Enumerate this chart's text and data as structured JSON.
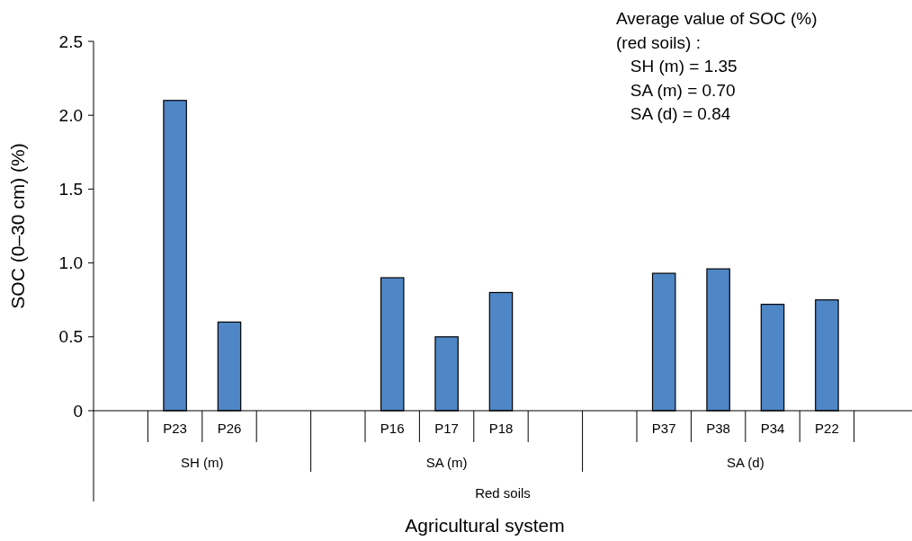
{
  "chart_data": {
    "type": "bar",
    "categories": [
      null,
      "P23",
      "P26",
      null,
      null,
      "P16",
      "P17",
      "P18",
      null,
      null,
      "P37",
      "P38",
      "P34",
      "P22",
      null
    ],
    "values": [
      null,
      2.1,
      0.6,
      null,
      null,
      0.9,
      0.5,
      0.8,
      null,
      null,
      0.93,
      0.96,
      0.72,
      0.75,
      null
    ],
    "color": "#4f86c6",
    "xlabel": "Agricultural system",
    "ylabel": "SOC (0–30 cm) (%)",
    "ylim": [
      0,
      2.5
    ],
    "yticks": [
      0,
      {
        "value": 0.5,
        "label": "0.5"
      },
      {
        "value": 1,
        "label": "1.0"
      },
      {
        "value": 1.5,
        "label": "1.5"
      },
      {
        "value": 2,
        "label": "2.0"
      },
      {
        "value": 2.5,
        "label": "2.5"
      }
    ],
    "annotations": [
      "Average value of SOC (%)\n(red soils) :\n   SH (m) = 1.35\n   SA (m) = 0.70\n   SA (d) = 0.84",
      "SH (m)",
      "SA (m)",
      "SA (d)",
      "Red soils"
    ]
  }
}
